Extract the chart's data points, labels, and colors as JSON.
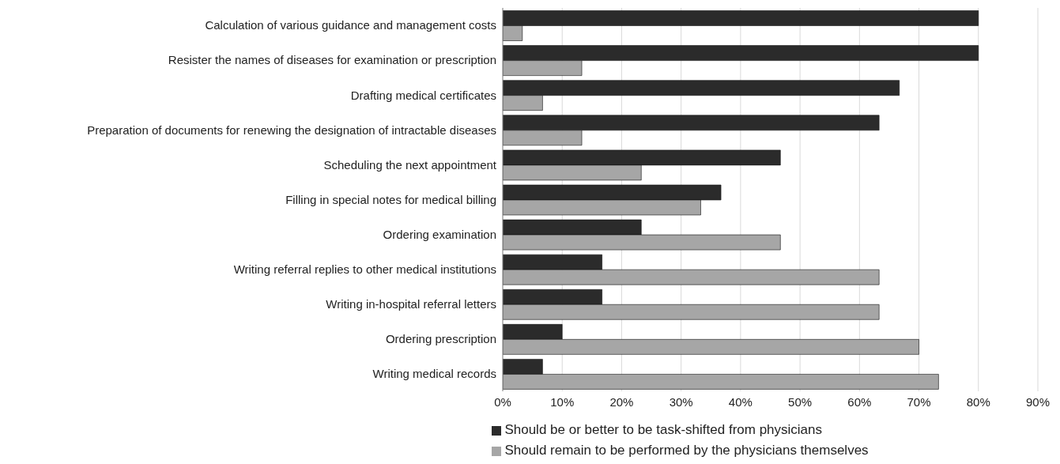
{
  "chart_data": {
    "type": "bar",
    "orientation": "horizontal",
    "categories": [
      "Calculation of various guidance and management costs",
      "Resister the names of diseases for examination or prescription",
      "Drafting medical certificates",
      "Preparation of documents for renewing the designation of intractable diseases",
      "Scheduling the next appointment",
      "Filling in special notes for medical billing",
      "Ordering examination",
      "Writing referral replies to other medical institutions",
      "Writing in-hospital referral letters",
      "Ordering prescription",
      "Writing medical records"
    ],
    "series": [
      {
        "name": "Should be or better to be task-shifted from physicians",
        "color": "#2b2b2b",
        "values": [
          80,
          80,
          66.7,
          63.3,
          46.7,
          36.7,
          23.3,
          16.7,
          16.7,
          10,
          6.7
        ]
      },
      {
        "name": "Should remain to be performed by the physicians themselves",
        "color": "#a6a6a6",
        "values": [
          3.3,
          13.3,
          6.7,
          13.3,
          23.3,
          33.3,
          46.7,
          63.3,
          63.3,
          70,
          73.3
        ]
      }
    ],
    "xlim": [
      0,
      90
    ],
    "xticks": [
      {
        "value": 0,
        "label": "0%"
      },
      {
        "value": 10,
        "label": "10%"
      },
      {
        "value": 20,
        "label": "20%"
      },
      {
        "value": 30,
        "label": "30%"
      },
      {
        "value": 40,
        "label": "40%"
      },
      {
        "value": 50,
        "label": "50%"
      },
      {
        "value": 60,
        "label": "60%"
      },
      {
        "value": 70,
        "label": "70%"
      },
      {
        "value": 80,
        "label": "80%"
      },
      {
        "value": 90,
        "label": "90%"
      }
    ],
    "grid": "x",
    "legend": "bottom"
  }
}
